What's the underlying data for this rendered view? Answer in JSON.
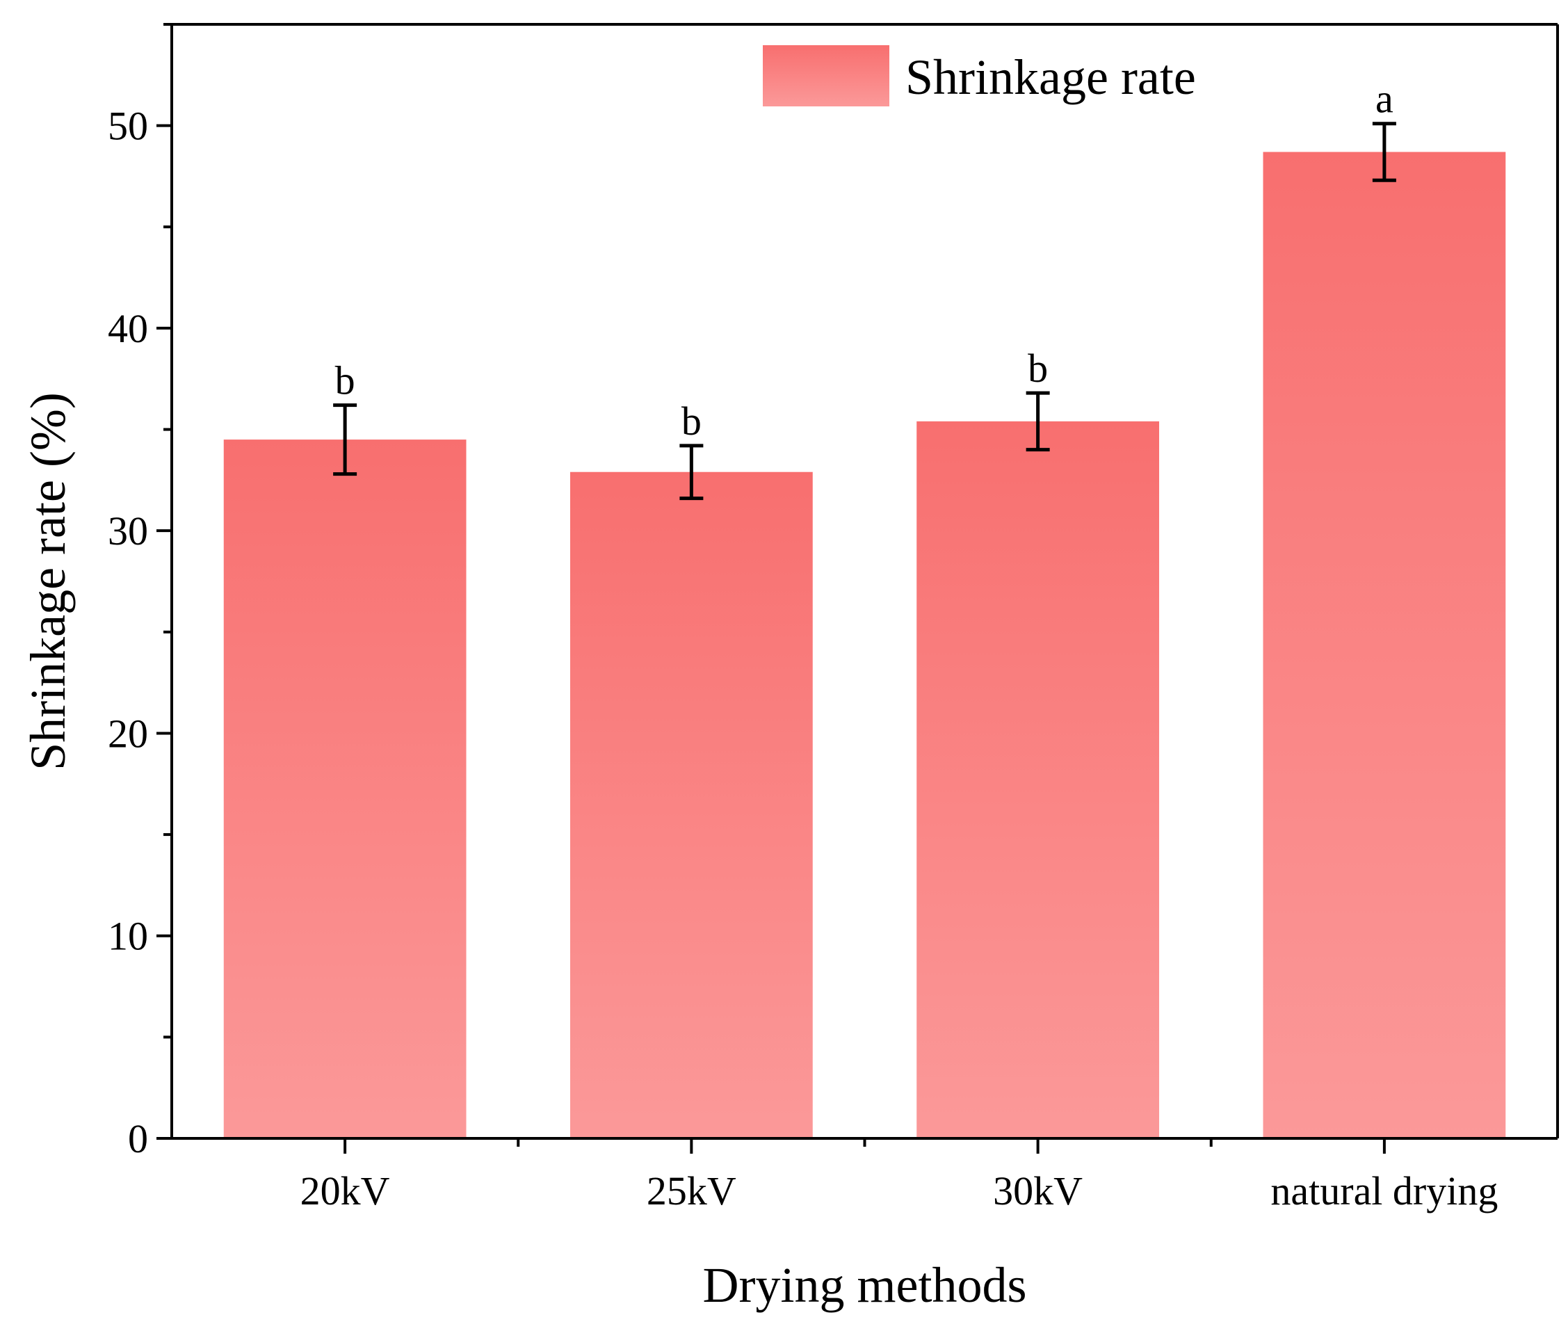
{
  "chart_data": {
    "type": "bar",
    "title": "",
    "xlabel": "Drying methods",
    "ylabel": "Shrinkage rate (%)",
    "categories": [
      "20kV",
      "25kV",
      "30kV",
      "natural drying"
    ],
    "series": [
      {
        "name": "Shrinkage rate",
        "values": [
          34.5,
          32.9,
          35.4,
          48.7
        ],
        "errors": [
          1.7,
          1.3,
          1.4,
          1.4
        ],
        "significance": [
          "b",
          "b",
          "b",
          "a"
        ]
      }
    ],
    "ylim": [
      0,
      55
    ],
    "yticks": [
      0,
      10,
      20,
      30,
      40,
      50
    ],
    "yticks_minor_step": 5,
    "grid": false,
    "legend": {
      "position": "top-right",
      "entries": [
        "Shrinkage rate"
      ]
    },
    "colors": {
      "bar_top": "#f86f6f",
      "bar_bottom": "#fb9999",
      "axis": "#000000"
    }
  }
}
